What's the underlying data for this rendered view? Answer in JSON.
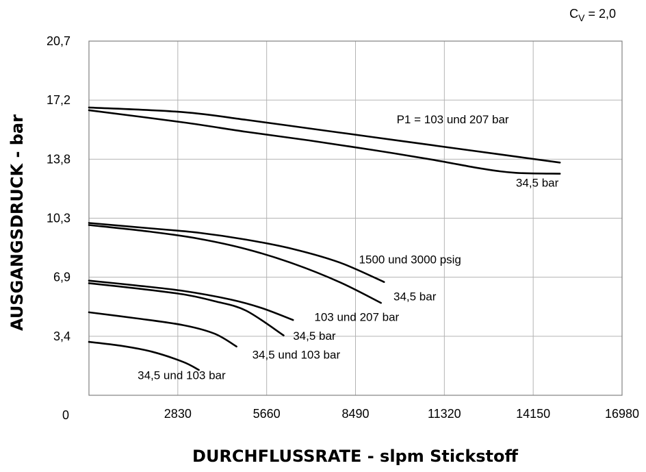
{
  "chart_data": {
    "type": "line",
    "xlabel": "DURCHFLUSSRATE - slpm Stickstoff",
    "ylabel": "AUSGANGSDRUCK - bar",
    "cv_label": {
      "prefix": "C",
      "sub": "V",
      "suffix": " = 2,0"
    },
    "xlim": [
      0,
      16980
    ],
    "ylim": [
      0,
      20.7
    ],
    "x_ticks": [
      0,
      2830,
      5660,
      8490,
      11320,
      14150,
      16980
    ],
    "x_tick_labels": [
      "0",
      "2830",
      "5660",
      "8490",
      "11320",
      "14150",
      "16980"
    ],
    "y_ticks": [
      3.45,
      6.9,
      10.35,
      13.8,
      17.25,
      20.7
    ],
    "y_tick_labels": [
      "3,4",
      "6,9",
      "10,3",
      "13,8",
      "17,2",
      "20,7"
    ],
    "grid": true,
    "legend": "none",
    "series": [
      {
        "x": [
          0,
          3000,
          5000,
          7000,
          9000,
          11000,
          13000,
          15000
        ],
        "y": [
          16.82,
          16.55,
          16.1,
          15.6,
          15.1,
          14.6,
          14.1,
          13.6
        ]
      },
      {
        "x": [
          0,
          3000,
          5000,
          7000,
          9000,
          11000,
          12500,
          13600,
          15000
        ],
        "y": [
          16.66,
          15.95,
          15.4,
          14.9,
          14.35,
          13.75,
          13.25,
          13.0,
          12.95
        ]
      },
      {
        "x": [
          0,
          2000,
          3500,
          5000,
          6500,
          8000,
          9400
        ],
        "y": [
          10.07,
          9.75,
          9.5,
          9.1,
          8.55,
          7.75,
          6.62
        ]
      },
      {
        "x": [
          0,
          2000,
          3500,
          5000,
          6500,
          8000,
          9300
        ],
        "y": [
          9.95,
          9.55,
          9.15,
          8.55,
          7.7,
          6.6,
          5.4
        ]
      },
      {
        "x": [
          0,
          1500,
          3000,
          4500,
          5500,
          6500
        ],
        "y": [
          6.7,
          6.42,
          6.1,
          5.6,
          5.1,
          4.4
        ]
      },
      {
        "x": [
          0,
          1500,
          3000,
          4000,
          5000,
          6200
        ],
        "y": [
          6.55,
          6.25,
          5.9,
          5.5,
          4.95,
          3.5
        ]
      },
      {
        "x": [
          0,
          1500,
          3000,
          4000,
          4700
        ],
        "y": [
          4.85,
          4.5,
          4.1,
          3.6,
          2.85
        ]
      },
      {
        "x": [
          0,
          1000,
          2000,
          3000,
          3500
        ],
        "y": [
          3.12,
          2.9,
          2.55,
          1.95,
          1.48
        ]
      }
    ],
    "annotations": [
      {
        "text": "P1 = 103 und 207 bar",
        "x": 9800,
        "y": 15.9
      },
      {
        "text": "34,5 bar",
        "x": 13600,
        "y": 12.2
      },
      {
        "text": "1500 und 3000 psig",
        "x": 8600,
        "y": 7.7
      },
      {
        "text": "34,5 bar",
        "x": 9700,
        "y": 5.55
      },
      {
        "text": "103 und 207 bar",
        "x": 7180,
        "y": 4.35
      },
      {
        "text": "34,5 bar",
        "x": 6500,
        "y": 3.25
      },
      {
        "text": "34,5 und 103 bar",
        "x": 5200,
        "y": 2.15
      },
      {
        "text": "34,5 und 103 bar",
        "x": 1550,
        "y": 0.95
      }
    ]
  }
}
